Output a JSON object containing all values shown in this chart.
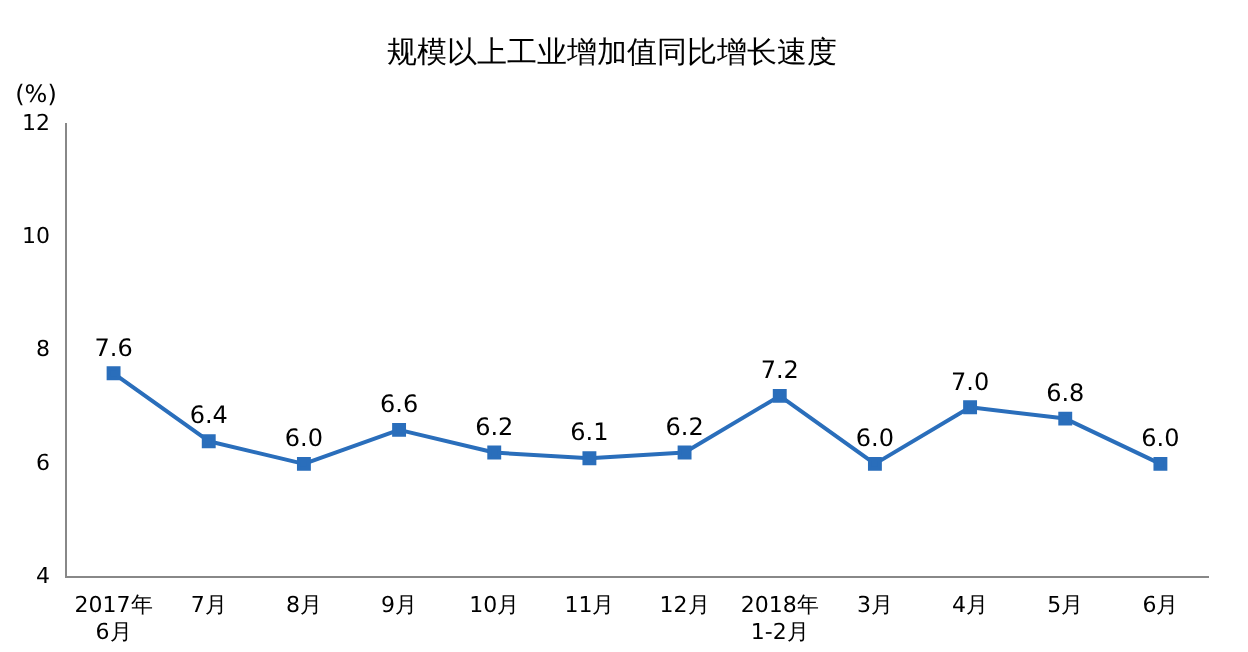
{
  "chart_data": {
    "type": "line",
    "title": "规模以上工业增加值同比增长速度",
    "ylabel": "(%)",
    "categories": [
      "2017年\n6月",
      "7月",
      "8月",
      "9月",
      "10月",
      "11月",
      "12月",
      "2018年\n1-2月",
      "3月",
      "4月",
      "5月",
      "6月"
    ],
    "series": [
      {
        "color": "#2a6ebb",
        "values": [
          7.6,
          6.4,
          6.0,
          6.6,
          6.2,
          6.1,
          6.2,
          7.2,
          6.0,
          7.0,
          6.8,
          6.0
        ],
        "value_labels": [
          "7.6",
          "6.4",
          "6.0",
          "6.6",
          "6.2",
          "6.1",
          "6.2",
          "7.2",
          "6.0",
          "7.0",
          "6.8",
          "6.0"
        ]
      }
    ],
    "ylim": [
      4,
      12
    ],
    "yticks": [
      4,
      6,
      8,
      10,
      12
    ],
    "grid": false,
    "legend": false,
    "marker": "square",
    "line_style": "solid"
  }
}
